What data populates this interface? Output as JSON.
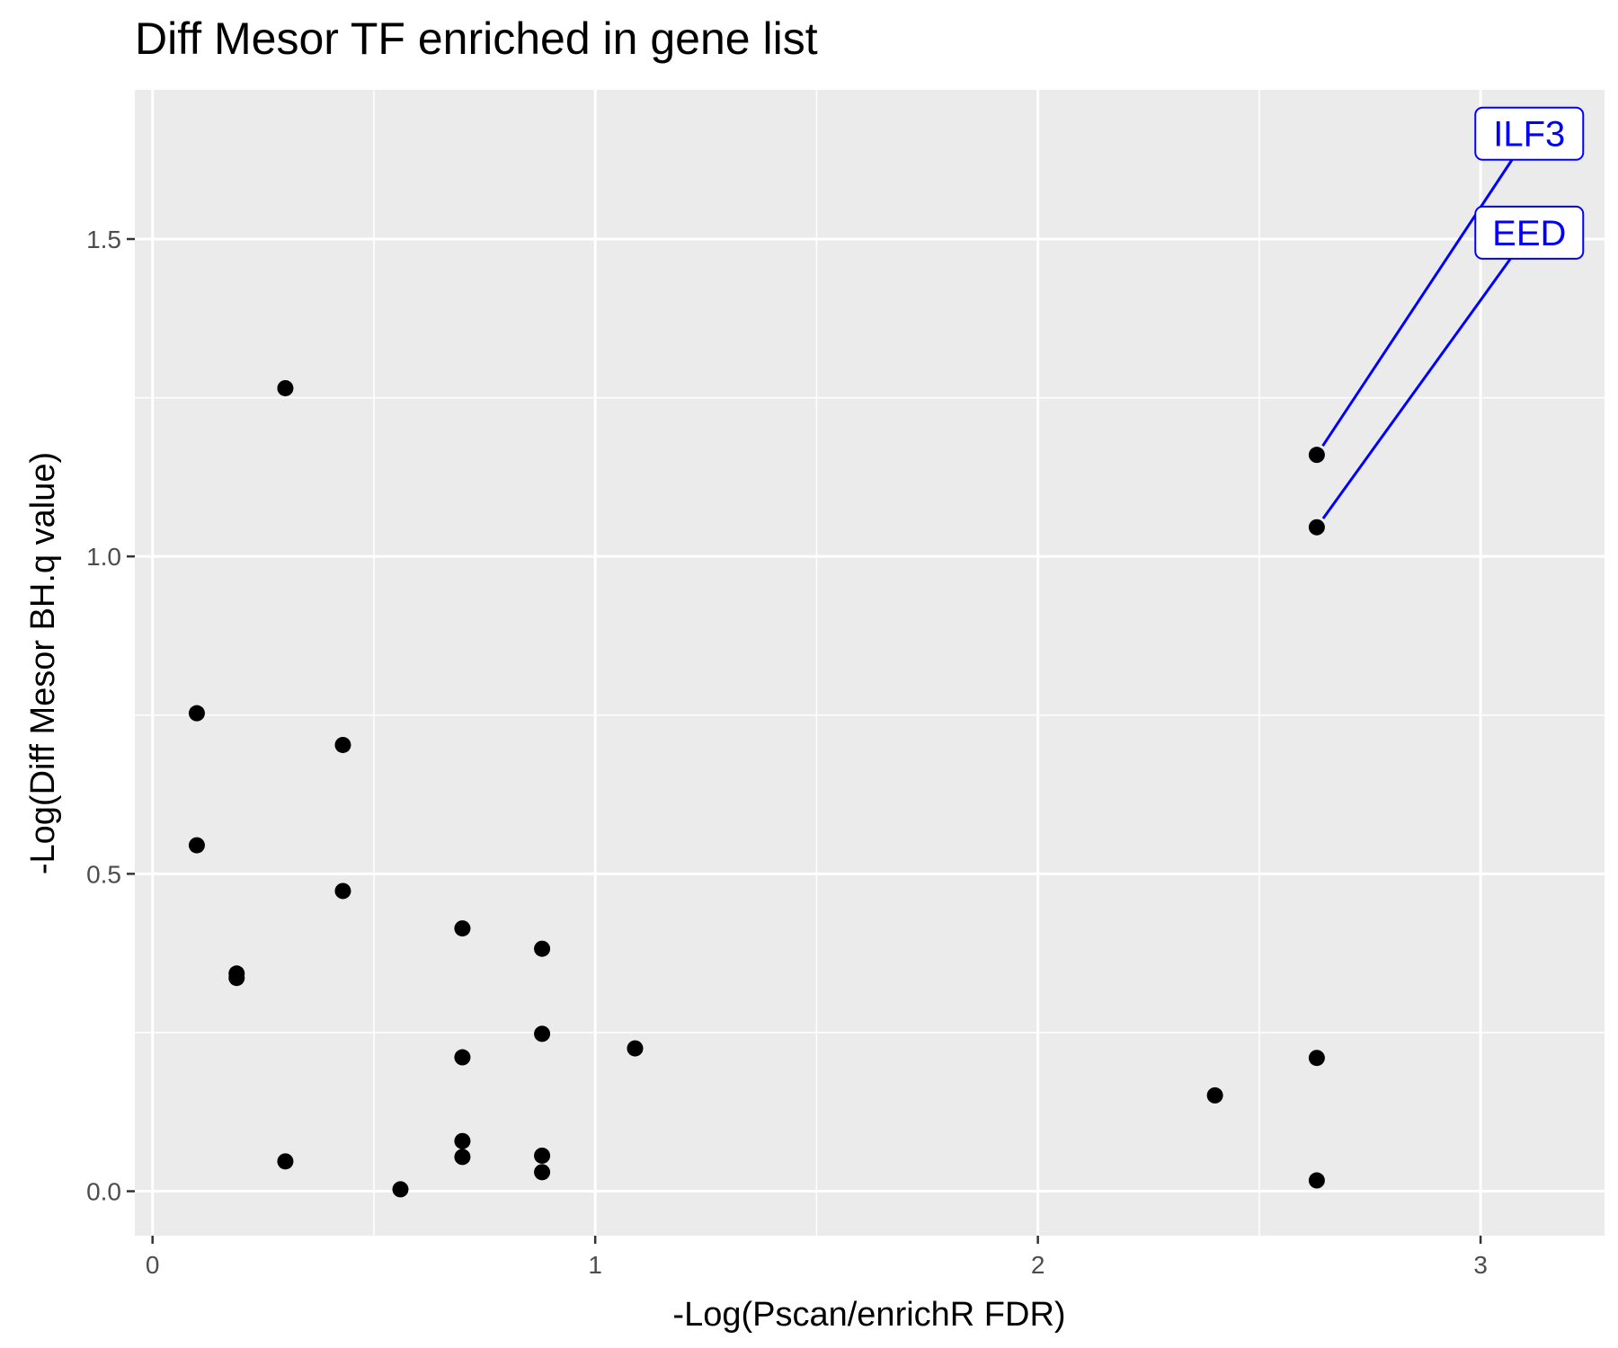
{
  "chart_data": {
    "type": "scatter",
    "title": "Diff Mesor TF enriched in gene list",
    "xlabel": "-Log(Pscan/enrichR FDR)",
    "ylabel": "-Log(Diff Mesor BH.q value)",
    "xlim": [
      -0.04,
      3.28
    ],
    "ylim": [
      -0.07,
      1.735
    ],
    "x_ticks": [
      {
        "value": 0,
        "label": "0"
      },
      {
        "value": 1,
        "label": "1"
      },
      {
        "value": 2,
        "label": "2"
      },
      {
        "value": 3,
        "label": "3"
      }
    ],
    "y_ticks": [
      {
        "value": 0.0,
        "label": "0.0"
      },
      {
        "value": 0.5,
        "label": "0.5"
      },
      {
        "value": 1.0,
        "label": "1.0"
      },
      {
        "value": 1.5,
        "label": "1.5"
      }
    ],
    "x_minor": [
      0.5,
      1.5,
      2.5
    ],
    "y_minor": [
      0.25,
      0.75,
      1.25
    ],
    "grid": true,
    "background": "#ebebeb",
    "grid_color": "#ffffff",
    "point_color": "#000000",
    "label_color": "#0000ff",
    "points": [
      {
        "x": 0.3,
        "y": 1.265
      },
      {
        "x": 0.1,
        "y": 0.753
      },
      {
        "x": 0.43,
        "y": 0.703
      },
      {
        "x": 0.1,
        "y": 0.545
      },
      {
        "x": 0.43,
        "y": 0.473
      },
      {
        "x": 0.19,
        "y": 0.343
      },
      {
        "x": 0.19,
        "y": 0.336
      },
      {
        "x": 0.7,
        "y": 0.414
      },
      {
        "x": 0.88,
        "y": 0.382
      },
      {
        "x": 0.88,
        "y": 0.248
      },
      {
        "x": 1.09,
        "y": 0.225
      },
      {
        "x": 0.7,
        "y": 0.211
      },
      {
        "x": 0.7,
        "y": 0.079
      },
      {
        "x": 0.7,
        "y": 0.054
      },
      {
        "x": 0.88,
        "y": 0.056
      },
      {
        "x": 0.88,
        "y": 0.03
      },
      {
        "x": 0.3,
        "y": 0.047
      },
      {
        "x": 0.56,
        "y": 0.003
      },
      {
        "x": 2.4,
        "y": 0.151
      },
      {
        "x": 2.63,
        "y": 0.21
      },
      {
        "x": 2.63,
        "y": 0.017
      },
      {
        "x": 2.63,
        "y": 1.16
      },
      {
        "x": 2.63,
        "y": 1.046
      }
    ],
    "annotations": [
      {
        "text": "ILF3",
        "x": 2.63,
        "y": 1.16,
        "label_x": 3.11,
        "label_y": 1.666
      },
      {
        "text": "EED",
        "x": 2.63,
        "y": 1.046,
        "label_x": 3.11,
        "label_y": 1.51
      }
    ]
  }
}
